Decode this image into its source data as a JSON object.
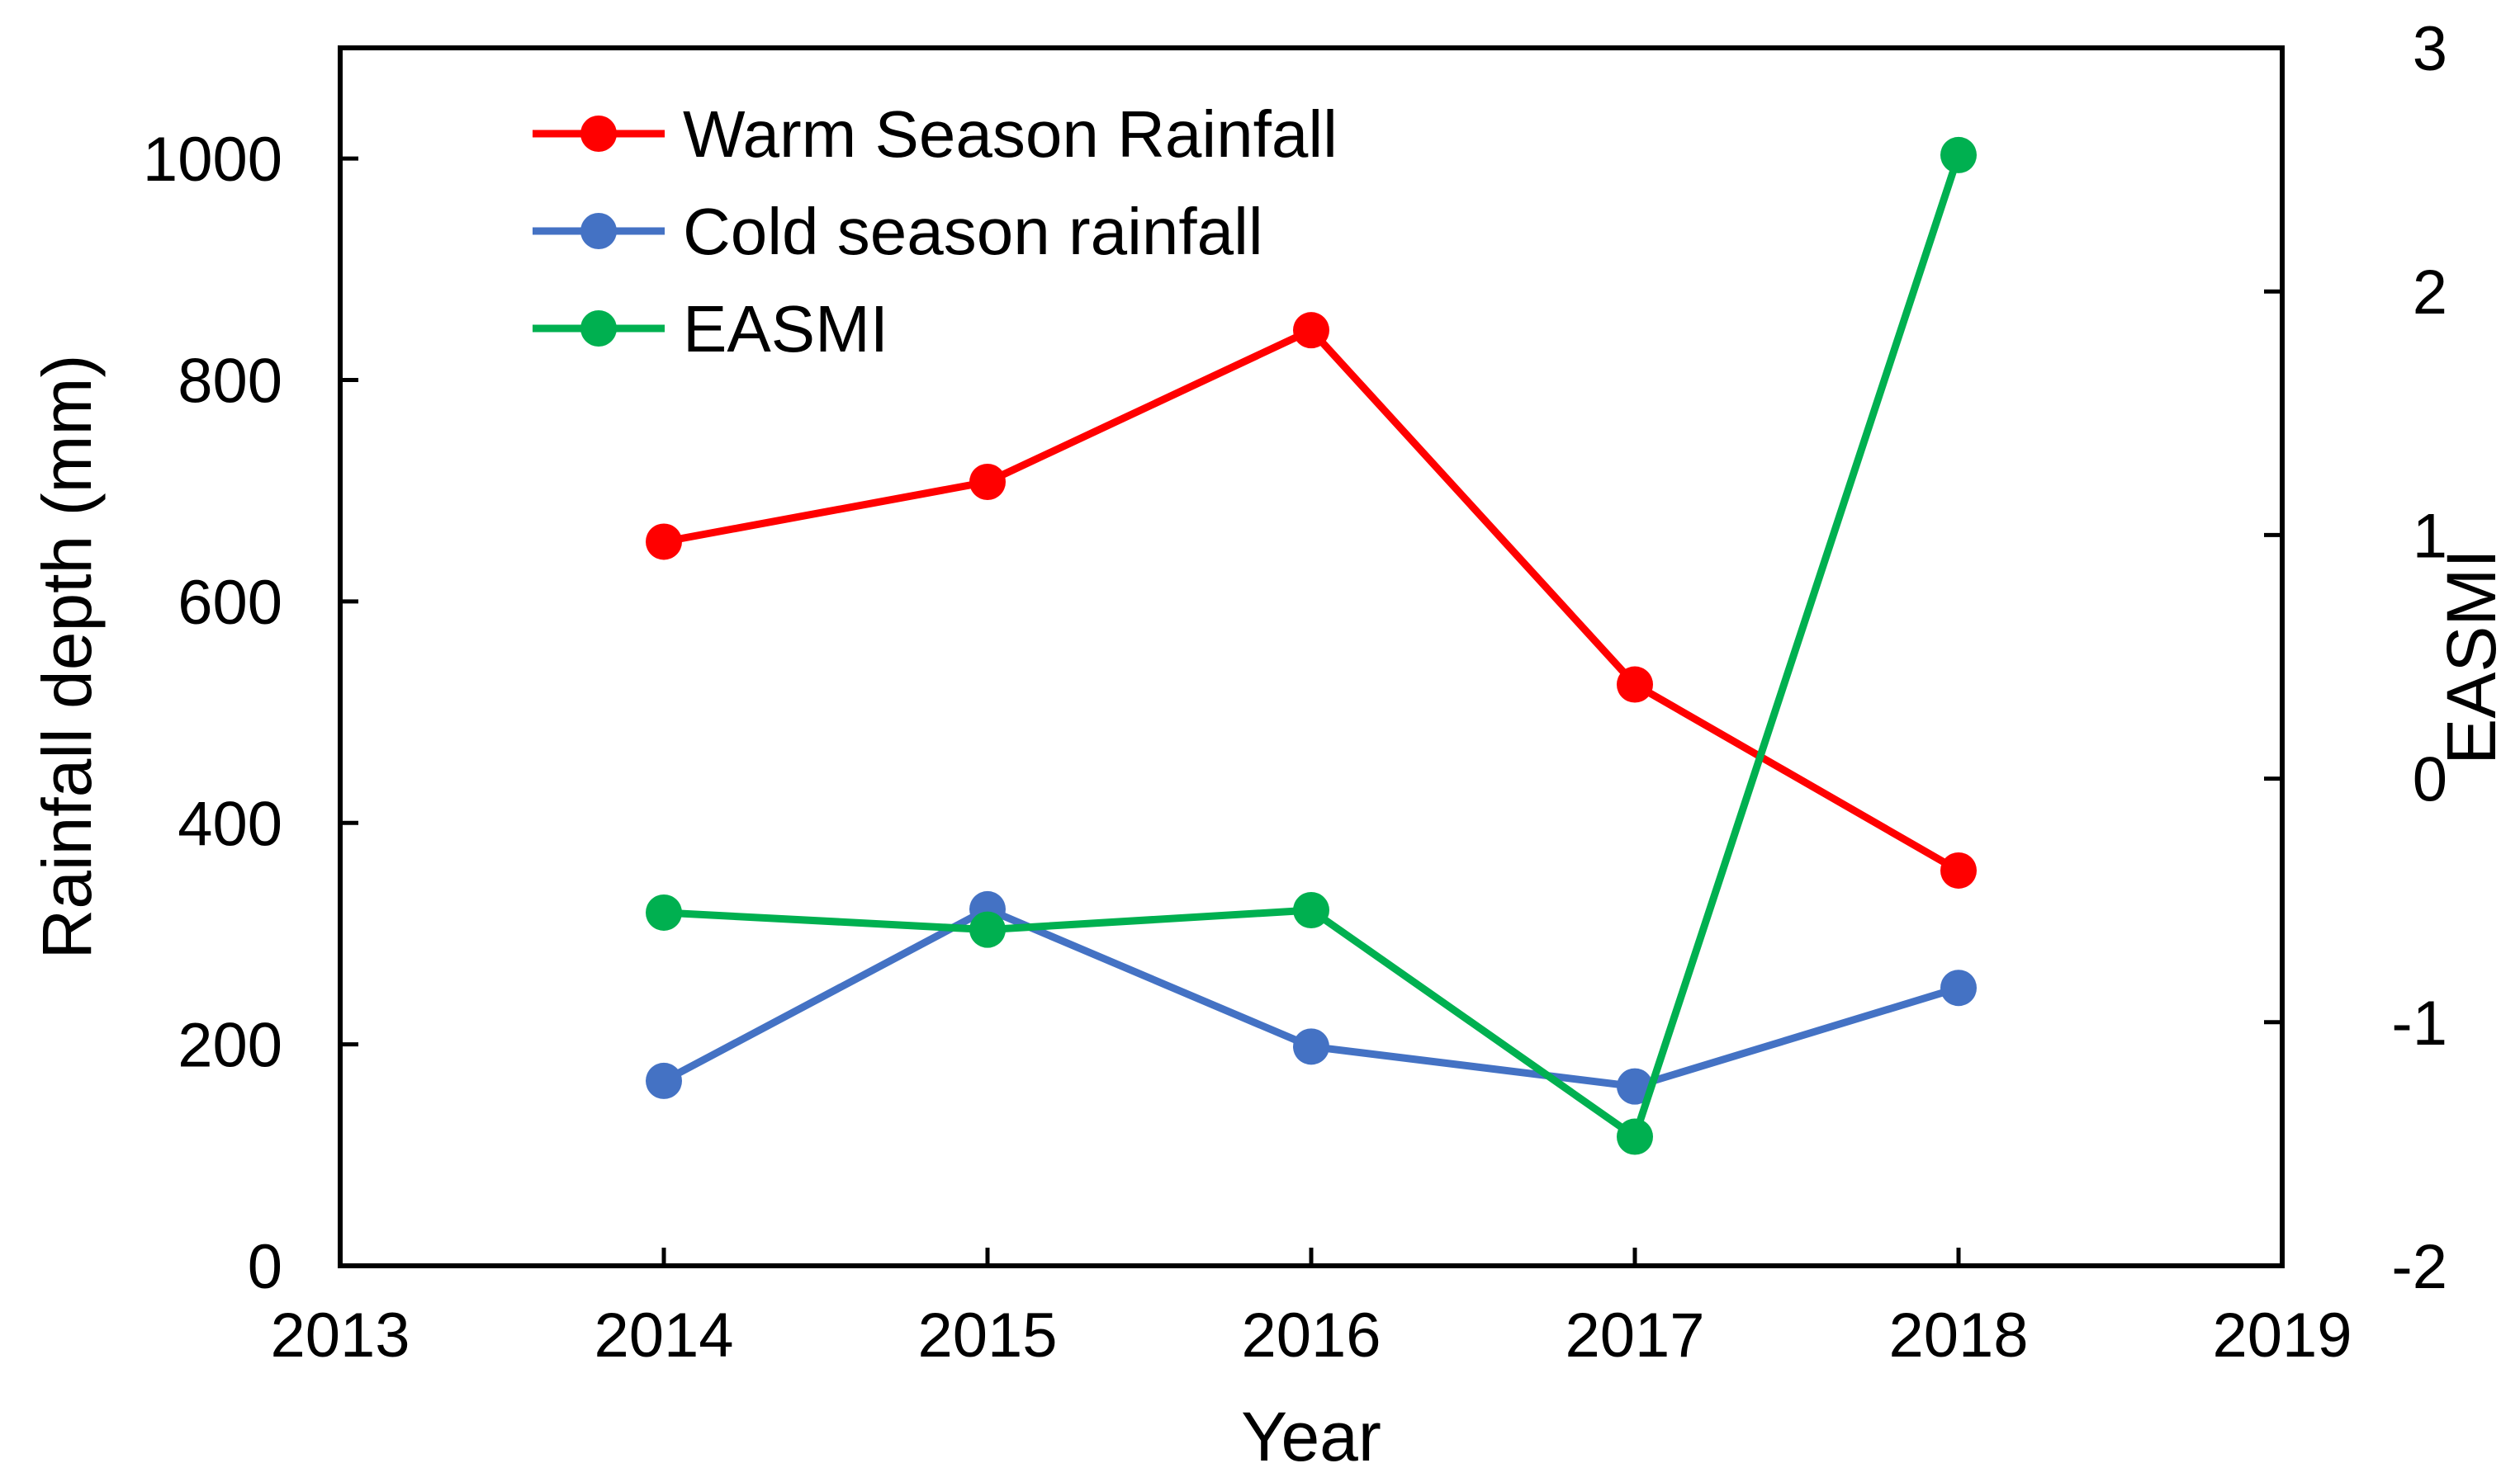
{
  "chart_data": {
    "type": "line",
    "title": "",
    "xlabel": "Year",
    "ylabel": "Rainfall depth (mm)",
    "y2label": "EASMI",
    "xlim": [
      2013,
      2019
    ],
    "ylim": [
      0,
      1100
    ],
    "y2lim": [
      -2,
      3
    ],
    "x_ticks": [
      2013,
      2014,
      2015,
      2016,
      2017,
      2018,
      2019
    ],
    "y_ticks": [
      0,
      200,
      400,
      600,
      800,
      1000
    ],
    "y2_ticks": [
      -2,
      -1,
      0,
      1,
      2,
      3
    ],
    "x": [
      2014,
      2015,
      2016,
      2017,
      2018
    ],
    "legend_position": "top-left",
    "grid": false,
    "series": [
      {
        "name": "Warm Season Rainfall",
        "axis": "left",
        "color": "#ff0000",
        "values": [
          654,
          708,
          845,
          525,
          357
        ]
      },
      {
        "name": "Cold season rainfall",
        "axis": "left",
        "color": "#4472c4",
        "values": [
          167,
          322,
          198,
          162,
          251
        ]
      },
      {
        "name": "EASMI",
        "axis": "right",
        "color": "#00b050",
        "values": [
          -0.55,
          -0.62,
          -0.54,
          -1.47,
          2.56
        ]
      }
    ]
  }
}
